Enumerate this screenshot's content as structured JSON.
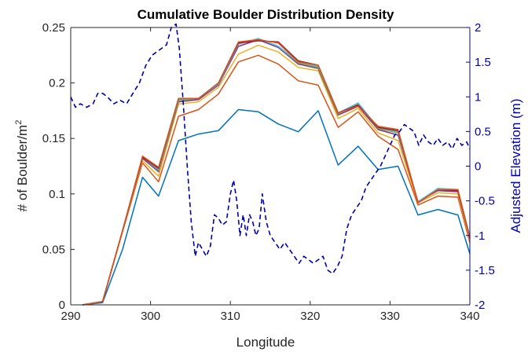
{
  "chart_data": {
    "type": "line",
    "title": "Cumulative Boulder Distribution Density",
    "xlabel": "Longitude",
    "ylabel_left_prefix": "# of Boulder/m",
    "ylabel_left_superscript": "2",
    "ylabel_right": "Adjusted Elevation (m)",
    "xlim": [
      290,
      340
    ],
    "ylim_left": [
      0,
      0.25
    ],
    "ylim_right": [
      -2,
      2
    ],
    "xticks": [
      "290",
      "300",
      "310",
      "320",
      "330",
      "340"
    ],
    "yticks_left": [
      "0",
      "0.05",
      "0.1",
      "0.15",
      "0.2",
      "0.25"
    ],
    "yticks_right": [
      "-2",
      "-1.5",
      "-1",
      "-0.5",
      "0",
      "0.5",
      "1",
      "1.5",
      "2"
    ],
    "x": [
      291.5,
      294,
      296.5,
      299,
      301,
      303.5,
      306,
      308.5,
      311,
      313.5,
      316,
      318.5,
      321,
      323.5,
      326,
      328.5,
      331,
      333.5,
      336,
      338.5,
      340
    ],
    "series": [
      {
        "color": "#0072bd",
        "values": [
          0,
          0.002,
          0.05,
          0.115,
          0.098,
          0.148,
          0.154,
          0.157,
          0.176,
          0.174,
          0.163,
          0.156,
          0.175,
          0.126,
          0.143,
          0.122,
          0.125,
          0.081,
          0.086,
          0.081,
          0.046
        ]
      },
      {
        "color": "#d95319",
        "values": [
          0,
          0.003,
          0.066,
          0.128,
          0.111,
          0.17,
          0.176,
          0.19,
          0.219,
          0.225,
          0.217,
          0.202,
          0.198,
          0.16,
          0.174,
          0.152,
          0.14,
          0.09,
          0.098,
          0.097,
          0.056
        ]
      },
      {
        "color": "#edb120",
        "values": [
          0,
          0.003,
          0.067,
          0.13,
          0.116,
          0.181,
          0.183,
          0.196,
          0.226,
          0.234,
          0.228,
          0.214,
          0.211,
          0.168,
          0.177,
          0.155,
          0.148,
          0.092,
          0.101,
          0.1,
          0.058
        ]
      },
      {
        "color": "#7e2f8e",
        "values": [
          0,
          0.003,
          0.067,
          0.132,
          0.12,
          0.183,
          0.185,
          0.198,
          0.233,
          0.239,
          0.232,
          0.217,
          0.213,
          0.171,
          0.179,
          0.158,
          0.153,
          0.093,
          0.103,
          0.102,
          0.06
        ]
      },
      {
        "color": "#77ac30",
        "values": [
          0,
          0.003,
          0.067,
          0.133,
          0.121,
          0.184,
          0.186,
          0.199,
          0.235,
          0.24,
          0.233,
          0.218,
          0.214,
          0.172,
          0.181,
          0.159,
          0.155,
          0.093,
          0.104,
          0.103,
          0.061
        ]
      },
      {
        "color": "#4dbeee",
        "values": [
          0,
          0.003,
          0.067,
          0.133,
          0.122,
          0.185,
          0.186,
          0.199,
          0.235,
          0.24,
          0.233,
          0.219,
          0.215,
          0.173,
          0.182,
          0.16,
          0.156,
          0.093,
          0.105,
          0.104,
          0.062
        ]
      },
      {
        "color": "#a2142f",
        "values": [
          0,
          0.003,
          0.067,
          0.133,
          0.123,
          0.186,
          0.186,
          0.2,
          0.236,
          0.238,
          0.237,
          0.22,
          0.216,
          0.173,
          0.18,
          0.16,
          0.157,
          0.092,
          0.104,
          0.103,
          0.06
        ]
      },
      {
        "color": "#d95319",
        "values": [
          0,
          0.003,
          0.067,
          0.134,
          0.124,
          0.186,
          0.186,
          0.2,
          0.237,
          0.239,
          0.236,
          0.219,
          0.216,
          0.173,
          0.179,
          0.161,
          0.158,
          0.092,
          0.104,
          0.104,
          0.06
        ]
      }
    ],
    "elevation": {
      "axis": "right",
      "style": "dashed",
      "color": "#0000aa",
      "x": [
        290,
        290.6,
        291.2,
        292,
        292.8,
        293.4,
        294,
        294.6,
        295.4,
        296.2,
        297,
        297.8,
        298.6,
        299.4,
        300.2,
        300.8,
        301.4,
        302,
        302.6,
        303.2,
        303.6,
        304.1,
        304.6,
        305.1,
        305.6,
        306,
        306.5,
        307,
        307.5,
        308,
        308.5,
        309,
        309.5,
        310,
        310.4,
        310.8,
        311.2,
        311.6,
        312,
        312.4,
        312.8,
        313.2,
        313.6,
        314,
        314.5,
        315,
        315.6,
        316.2,
        316.8,
        317.4,
        318,
        318.6,
        319.2,
        319.8,
        320.4,
        321,
        321.6,
        322.2,
        322.8,
        323.4,
        324,
        324.6,
        325.2,
        325.8,
        326.4,
        327,
        327.6,
        328.2,
        328.8,
        329.4,
        330,
        330.6,
        331.2,
        331.8,
        332.4,
        333,
        333.6,
        334.2,
        334.8,
        335.4,
        336,
        336.6,
        337.2,
        337.8,
        338.4,
        339,
        339.6,
        340
      ],
      "y": [
        1.0,
        0.85,
        0.9,
        0.85,
        0.9,
        1.05,
        1.05,
        1.0,
        0.9,
        0.95,
        0.9,
        1.05,
        1.2,
        1.45,
        1.6,
        1.65,
        1.7,
        1.75,
        2.0,
        2.05,
        1.7,
        0.9,
        0.0,
        -0.8,
        -1.3,
        -1.1,
        -1.2,
        -1.3,
        -1.15,
        -0.7,
        -0.75,
        -0.85,
        -0.8,
        -0.4,
        -0.2,
        -0.5,
        -1.0,
        -0.7,
        -1.0,
        -0.7,
        -0.8,
        -1.0,
        -0.9,
        -0.4,
        -0.8,
        -1.0,
        -1.1,
        -1.2,
        -1.1,
        -1.2,
        -1.3,
        -1.4,
        -1.3,
        -1.35,
        -1.4,
        -1.35,
        -1.3,
        -1.5,
        -1.55,
        -1.45,
        -1.3,
        -0.9,
        -0.7,
        -0.6,
        -0.5,
        -0.3,
        -0.2,
        -0.1,
        0.0,
        0.15,
        0.3,
        0.45,
        0.5,
        0.6,
        0.55,
        0.5,
        0.3,
        0.45,
        0.35,
        0.3,
        0.4,
        0.3,
        0.35,
        0.25,
        0.4,
        0.3,
        0.35,
        0.25
      ]
    }
  }
}
